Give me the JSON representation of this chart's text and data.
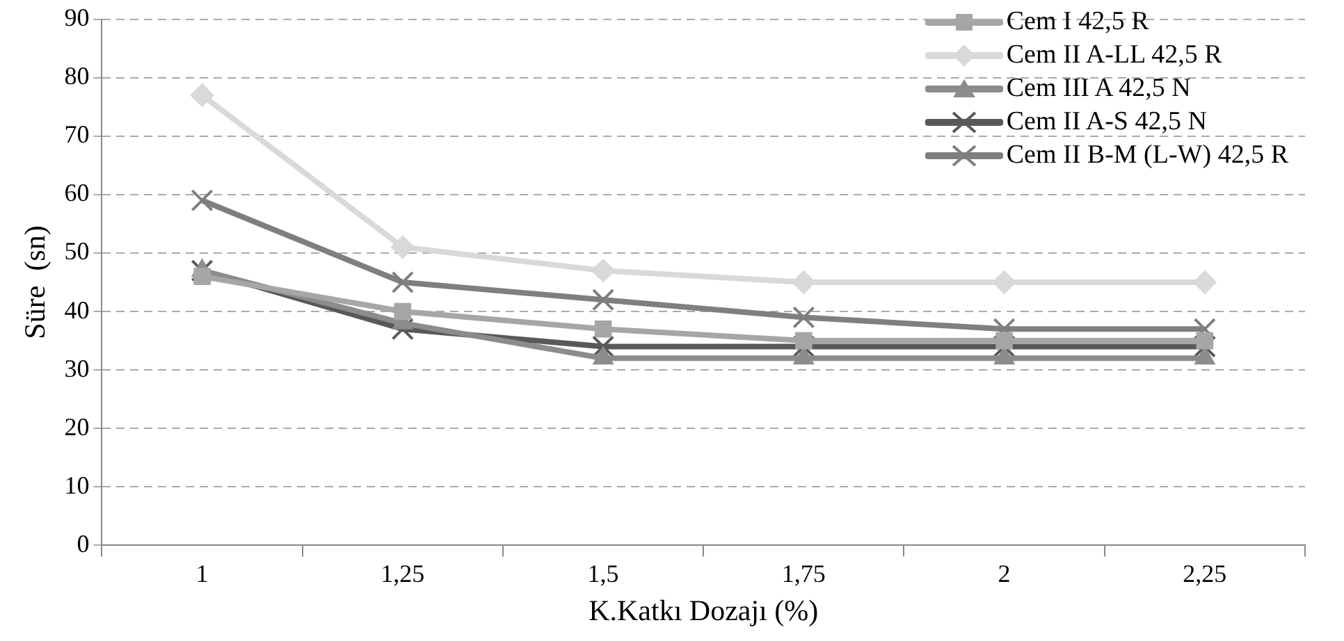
{
  "chart_data": {
    "type": "line",
    "xlabel": "K.Katkı Dozajı (%)",
    "ylabel": "Süre  (sn)",
    "categories": [
      "1",
      "1,25",
      "1,5",
      "1,75",
      "2",
      "2,25"
    ],
    "series": [
      {
        "name": "Cem I 42,5 R",
        "color": "#a6a6a6",
        "marker": "square",
        "values": [
          46,
          40,
          37,
          35,
          35,
          35
        ]
      },
      {
        "name": "Cem II A-LL 42,5 R",
        "color": "#d9d9d9",
        "marker": "diamond",
        "values": [
          77,
          51,
          47,
          45,
          45,
          45
        ]
      },
      {
        "name": "Cem III A 42,5 N",
        "color": "#8c8c8c",
        "marker": "triangle",
        "values": [
          47,
          38,
          32,
          32,
          32,
          32
        ]
      },
      {
        "name": "Cem II A-S 42,5 N",
        "color": "#595959",
        "marker": "cross",
        "values": [
          47,
          37,
          34,
          34,
          34,
          34
        ]
      },
      {
        "name": "Cem II B-M (L-W) 42,5 R",
        "color": "#7f7f7f",
        "marker": "cross",
        "values": [
          59,
          45,
          42,
          39,
          37,
          37
        ]
      }
    ],
    "ylim": [
      0,
      90
    ],
    "yticks": [
      0,
      10,
      20,
      30,
      40,
      50,
      60,
      70,
      80,
      90
    ],
    "grid": "y",
    "legend": "top right"
  }
}
